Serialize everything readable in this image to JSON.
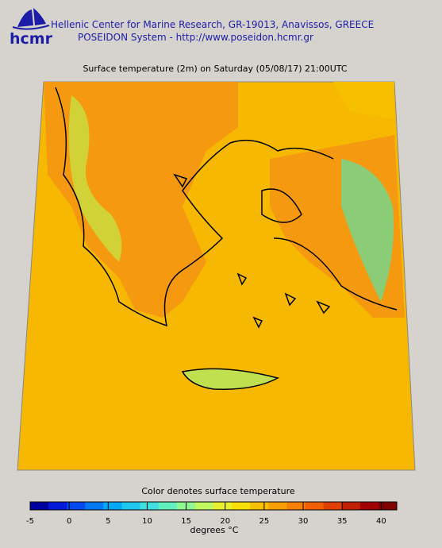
{
  "header": {
    "logo": "hcmr",
    "line1": "Hellenic Center for Marine Research, GR-19013, Anavissos, GREECE",
    "line2": "POSEIDON System - http://www.poseidon.hcmr.gr"
  },
  "map": {
    "title": "Surface temperature (2m) on Saturday (05/08/17) 21:00UTC"
  },
  "colorbar": {
    "caption": "Color denotes surface temperature",
    "unit": "degrees °C",
    "lim": [
      -5,
      42
    ],
    "ticks": [
      -5,
      0,
      5,
      10,
      15,
      20,
      25,
      30,
      35,
      40
    ],
    "colors": [
      "#0000a0",
      "#0018d8",
      "#0048f0",
      "#0078f8",
      "#00a8f8",
      "#20c8f0",
      "#40e0e0",
      "#60f0c0",
      "#90f890",
      "#c0f860",
      "#e8f030",
      "#f8e000",
      "#f8c000",
      "#f8a000",
      "#f88000",
      "#f06000",
      "#e04000",
      "#c02000",
      "#a00000",
      "#800000"
    ]
  }
}
